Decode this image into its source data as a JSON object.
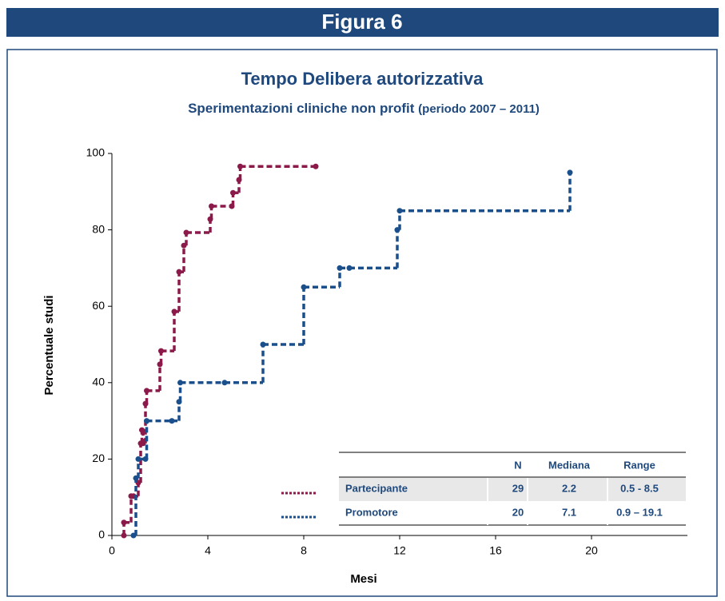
{
  "header": {
    "title": "Figura 6"
  },
  "chart_data": {
    "type": "step",
    "title": "Tempo Delibera autorizzativa",
    "subtitle": "Sperimentazioni cliniche non profit",
    "subtitle_note": "(periodo 2007 – 2011)",
    "xlabel": "Mesi",
    "ylabel": "Percentuale  studi",
    "xlim": [
      0,
      24
    ],
    "ylim": [
      0,
      100
    ],
    "xticks": [
      0,
      4,
      8,
      12,
      16,
      20
    ],
    "yticks": [
      0,
      20,
      40,
      60,
      80,
      100
    ],
    "series": [
      {
        "name": "Partecipante",
        "color": "#8b1a4a",
        "x": [
          0.5,
          0.5,
          0.8,
          0.9,
          1.1,
          1.2,
          1.25,
          1.3,
          1.4,
          1.45,
          2.0,
          2.05,
          2.6,
          2.8,
          3.0,
          3.1,
          4.1,
          4.15,
          5.0,
          5.05,
          5.3,
          5.35,
          8.5
        ],
        "values": [
          0,
          3.4,
          10.3,
          10.3,
          13.8,
          24.1,
          27.6,
          24.1,
          34.5,
          37.9,
          44.8,
          48.3,
          58.6,
          69,
          75.9,
          79.3,
          82.8,
          86.2,
          86.2,
          89.7,
          93.1,
          96.6,
          96.6
        ]
      },
      {
        "name": "Promotore",
        "color": "#1a4f8b",
        "x": [
          0.9,
          1.0,
          1.1,
          1.4,
          1.45,
          2.5,
          2.8,
          2.85,
          4.7,
          6.3,
          8.0,
          9.5,
          9.9,
          11.9,
          12.0,
          19.1
        ],
        "values": [
          0,
          15,
          20,
          20,
          30,
          30,
          35,
          40,
          40,
          50,
          65,
          70,
          70,
          80,
          85,
          95
        ]
      }
    ],
    "legend_table": {
      "columns": [
        "N",
        "Mediana",
        "Range"
      ],
      "rows": [
        [
          29,
          2.2,
          "0.5 - 8.5"
        ],
        [
          20,
          7.1,
          "0.9 – 19.1"
        ]
      ]
    }
  }
}
